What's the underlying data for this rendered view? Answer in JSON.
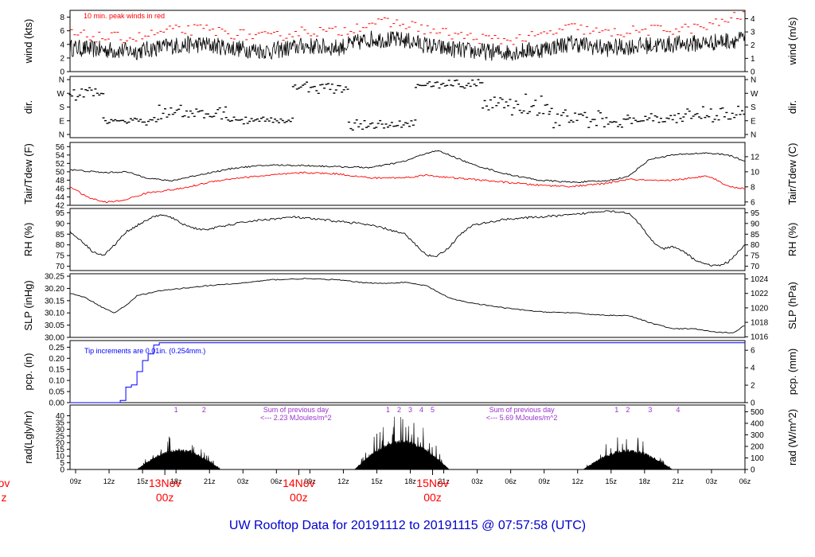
{
  "footer": {
    "title": "UW Rooftop Data for 20191112  to  20191115 @ 07:57:58  (UTC)"
  },
  "colors": {
    "primary": "#000000",
    "peak": "#ff0000",
    "dew": "#ff0000",
    "precip": "#0000ff",
    "annotation": "#9933cc",
    "day_label": "#ff0000",
    "footer": "#0000cc"
  },
  "chart_data": [
    {
      "type": "line",
      "id": "wind",
      "ylabel_left": "wind (kts)",
      "ylabel_right": "wind (m/s)",
      "ylim": [
        0,
        9
      ],
      "yticks": [
        0,
        2,
        4,
        6,
        8
      ],
      "yticks_right_labels": [
        "0",
        "1",
        "2",
        "3",
        "4"
      ],
      "annotation": "10 min. peak winds in red",
      "series": [
        {
          "values_hours_kts": [
            [
              0,
              3.5
            ],
            [
              6,
              3.2
            ],
            [
              12,
              3.0
            ],
            [
              18,
              3.8
            ],
            [
              24,
              4.0
            ],
            [
              30,
              3.4
            ],
            [
              36,
              3.0
            ],
            [
              42,
              3.8
            ],
            [
              48,
              3.5
            ],
            [
              54,
              4.8
            ],
            [
              60,
              4.6
            ],
            [
              66,
              3.5
            ],
            [
              72,
              3.0
            ],
            [
              78,
              2.8
            ],
            [
              84,
              3.2
            ],
            [
              90,
              4.2
            ],
            [
              96,
              3.4
            ],
            [
              102,
              3.8
            ],
            [
              108,
              4.0
            ],
            [
              114,
              4.2
            ],
            [
              121,
              4.8
            ]
          ]
        },
        {
          "values_hours_kts": [
            [
              0,
              5.5
            ],
            [
              6,
              5.0
            ],
            [
              12,
              5.0
            ],
            [
              18,
              6.0
            ],
            [
              24,
              6.2
            ],
            [
              30,
              5.5
            ],
            [
              36,
              5.0
            ],
            [
              42,
              6.0
            ],
            [
              48,
              5.8
            ],
            [
              54,
              7.2
            ],
            [
              60,
              7.0
            ],
            [
              66,
              5.8
            ],
            [
              72,
              5.0
            ],
            [
              78,
              4.6
            ],
            [
              84,
              5.2
            ],
            [
              90,
              6.5
            ],
            [
              96,
              5.6
            ],
            [
              102,
              6.0
            ],
            [
              108,
              6.2
            ],
            [
              114,
              6.5
            ],
            [
              121,
              8.5
            ]
          ]
        }
      ]
    },
    {
      "type": "scatter",
      "id": "dir",
      "ylabel_left": "dir.",
      "ylabel_right": "dir.",
      "yticks_labels": [
        "N",
        "W",
        "S",
        "E",
        "N"
      ]
    },
    {
      "type": "line",
      "id": "temp",
      "ylabel_left": "Tair/Tdew (F)",
      "ylabel_right": "Tair/Tdew (C)",
      "ylim": [
        42,
        57
      ],
      "yticks": [
        42,
        44,
        46,
        48,
        50,
        52,
        54,
        56
      ],
      "yticks_right": [
        6,
        8,
        10,
        12
      ],
      "series": [
        {
          "values_hours_F": [
            [
              0,
              50.5
            ],
            [
              6,
              49.8
            ],
            [
              10,
              50.0
            ],
            [
              14,
              48.5
            ],
            [
              18,
              47.8
            ],
            [
              24,
              49.5
            ],
            [
              30,
              51.0
            ],
            [
              36,
              51.6
            ],
            [
              42,
              51.5
            ],
            [
              48,
              51.2
            ],
            [
              54,
              51.0
            ],
            [
              60,
              52.5
            ],
            [
              64,
              54.5
            ],
            [
              66,
              55.0
            ],
            [
              68,
              54.0
            ],
            [
              72,
              51.8
            ],
            [
              78,
              49.5
            ],
            [
              84,
              48.0
            ],
            [
              90,
              47.5
            ],
            [
              96,
              47.8
            ],
            [
              100,
              48.8
            ],
            [
              102,
              51.0
            ],
            [
              104,
              53.0
            ],
            [
              108,
              54.0
            ],
            [
              114,
              54.5
            ],
            [
              118,
              54.0
            ],
            [
              121,
              52.5
            ]
          ]
        },
        {
          "values_hours_F": [
            [
              0,
              46.5
            ],
            [
              3,
              44.0
            ],
            [
              6,
              42.8
            ],
            [
              9,
              43.0
            ],
            [
              14,
              45.0
            ],
            [
              20,
              46.0
            ],
            [
              26,
              47.8
            ],
            [
              30,
              48.5
            ],
            [
              36,
              49.2
            ],
            [
              42,
              49.8
            ],
            [
              48,
              49.5
            ],
            [
              54,
              48.5
            ],
            [
              60,
              48.6
            ],
            [
              64,
              49.2
            ],
            [
              68,
              48.6
            ],
            [
              72,
              48.2
            ],
            [
              78,
              47.5
            ],
            [
              84,
              46.8
            ],
            [
              90,
              46.5
            ],
            [
              96,
              47.2
            ],
            [
              100,
              48.2
            ],
            [
              106,
              47.8
            ],
            [
              112,
              48.5
            ],
            [
              114,
              49.2
            ],
            [
              116,
              48.0
            ],
            [
              118,
              46.5
            ],
            [
              121,
              46.0
            ]
          ]
        }
      ]
    },
    {
      "type": "line",
      "id": "rh",
      "ylabel_left": "RH (%)",
      "ylabel_right": "RH (%)",
      "ylim": [
        68,
        97
      ],
      "yticks": [
        70,
        75,
        80,
        85,
        90,
        95
      ],
      "series": [
        {
          "values_hours": [
            [
              0,
              86
            ],
            [
              2,
              82
            ],
            [
              4,
              77
            ],
            [
              6,
              75
            ],
            [
              8,
              80
            ],
            [
              10,
              86
            ],
            [
              12,
              89
            ],
            [
              14,
              92
            ],
            [
              16,
              94
            ],
            [
              18,
              93
            ],
            [
              20,
              90
            ],
            [
              22,
              88
            ],
            [
              24,
              87
            ],
            [
              28,
              89
            ],
            [
              32,
              91
            ],
            [
              36,
              92
            ],
            [
              40,
              93
            ],
            [
              44,
              92
            ],
            [
              48,
              91
            ],
            [
              52,
              90
            ],
            [
              56,
              88
            ],
            [
              60,
              85
            ],
            [
              62,
              80
            ],
            [
              64,
              75
            ],
            [
              66,
              75
            ],
            [
              68,
              79
            ],
            [
              70,
              85
            ],
            [
              72,
              89
            ],
            [
              78,
              92
            ],
            [
              84,
              93
            ],
            [
              90,
              94
            ],
            [
              96,
              96
            ],
            [
              100,
              95
            ],
            [
              102,
              90
            ],
            [
              104,
              83
            ],
            [
              106,
              78
            ],
            [
              108,
              79
            ],
            [
              110,
              77
            ],
            [
              112,
              73
            ],
            [
              114,
              71
            ],
            [
              116,
              70
            ],
            [
              118,
              72
            ],
            [
              121,
              80
            ]
          ]
        }
      ]
    },
    {
      "type": "line",
      "id": "slp",
      "ylabel_left": "SLP (inHg)",
      "ylabel_right": "SLP (hPa)",
      "ylim": [
        30.0,
        30.26
      ],
      "yticks": [
        30.0,
        30.05,
        30.1,
        30.15,
        30.2,
        30.25
      ],
      "yticks_right": [
        1016,
        1018,
        1020,
        1022,
        1024
      ],
      "series": [
        {
          "values_hours": [
            [
              0,
              30.18
            ],
            [
              3,
              30.16
            ],
            [
              6,
              30.12
            ],
            [
              8,
              30.1
            ],
            [
              10,
              30.13
            ],
            [
              12,
              30.17
            ],
            [
              16,
              30.19
            ],
            [
              20,
              30.2
            ],
            [
              24,
              30.21
            ],
            [
              30,
              30.22
            ],
            [
              36,
              30.235
            ],
            [
              42,
              30.24
            ],
            [
              48,
              30.235
            ],
            [
              52,
              30.225
            ],
            [
              56,
              30.22
            ],
            [
              60,
              30.225
            ],
            [
              64,
              30.21
            ],
            [
              68,
              30.16
            ],
            [
              72,
              30.14
            ],
            [
              78,
              30.12
            ],
            [
              84,
              30.105
            ],
            [
              90,
              30.1
            ],
            [
              96,
              30.09
            ],
            [
              100,
              30.09
            ],
            [
              104,
              30.06
            ],
            [
              108,
              30.035
            ],
            [
              112,
              30.035
            ],
            [
              116,
              30.02
            ],
            [
              119,
              30.02
            ],
            [
              121,
              30.05
            ]
          ]
        }
      ]
    },
    {
      "type": "line",
      "id": "precip",
      "ylabel_left": "pcp. (in)",
      "ylabel_right": "pcp. (mm)",
      "ylim": [
        0,
        0.28
      ],
      "yticks": [
        0.0,
        0.05,
        0.1,
        0.15,
        0.2,
        0.25
      ],
      "yticks_right": [
        0,
        2,
        4,
        6
      ],
      "annotation": "Tip increments are 0.01in. (0.254mm.)",
      "series": [
        {
          "values_hours": [
            [
              0,
              0
            ],
            [
              8,
              0
            ],
            [
              9,
              0.01
            ],
            [
              10,
              0.07
            ],
            [
              11,
              0.08
            ],
            [
              12,
              0.14
            ],
            [
              13,
              0.19
            ],
            [
              14,
              0.22
            ],
            [
              15,
              0.26
            ],
            [
              16,
              0.27
            ],
            [
              121,
              0.27
            ]
          ]
        }
      ]
    },
    {
      "type": "area",
      "id": "rad",
      "ylabel_left": "rad(Lgly/hr)",
      "ylabel_right": "rad (W/m^2)",
      "ylim": [
        0,
        48
      ],
      "yticks": [
        0,
        5,
        10,
        15,
        20,
        25,
        30,
        35,
        40
      ],
      "yticks_right": [
        0,
        100,
        200,
        300,
        400,
        500
      ],
      "annotations": [
        {
          "text": "Sum of previous day\n<--- 2.23 MJoules/m^2"
        },
        {
          "text": "Sum of previous day\n<--- 5.69 MJoules/m^2"
        }
      ],
      "peak_labels": [
        "1",
        "2",
        "1",
        "2",
        "3",
        "4",
        "5",
        "1",
        "2",
        "3",
        "4"
      ],
      "days": [
        {
          "start": 12,
          "end": 27,
          "peak": 28
        },
        {
          "start": 51,
          "end": 68,
          "peak": 42
        },
        {
          "start": 92,
          "end": 108,
          "peak": 27
        }
      ]
    }
  ],
  "xaxis": {
    "hour_labels": [
      "09z",
      "12z",
      "15z",
      "18z",
      "21z",
      "03z",
      "06z",
      "09z",
      "12z",
      "15z",
      "18z",
      "21z",
      "03z",
      "06z",
      "09z",
      "12z",
      "15z",
      "18z",
      "21z",
      "03z",
      "06z"
    ],
    "day_labels": [
      {
        "text": "ov",
        "sub": "z"
      },
      {
        "text": "13Nov",
        "sub": "00z"
      },
      {
        "text": "14Nov",
        "sub": "00z"
      },
      {
        "text": "15Nov",
        "sub": "00z"
      }
    ]
  }
}
